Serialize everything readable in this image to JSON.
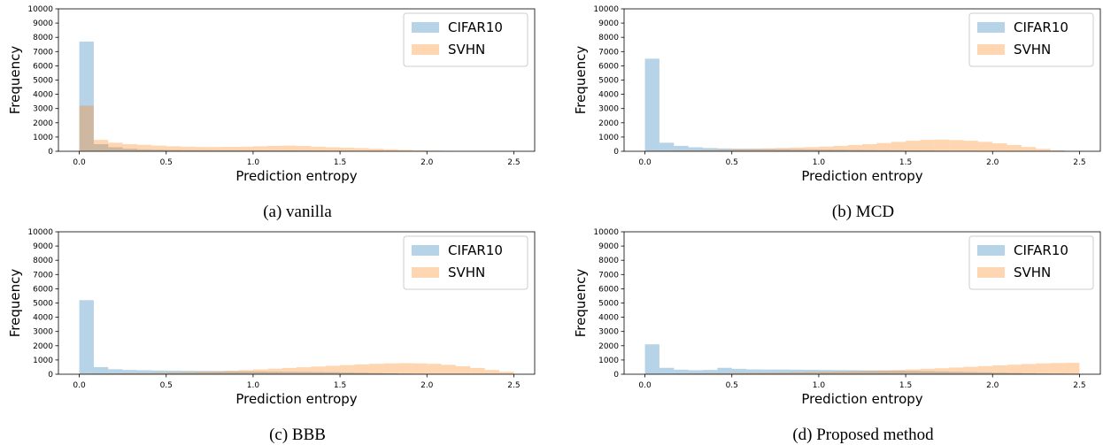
{
  "chart_data": [
    {
      "type": "bar",
      "caption": "(a) vanilla",
      "xlabel": "Prediction entropy",
      "ylabel": "Frequency",
      "xlim": [
        -0.12,
        2.62
      ],
      "ylim": [
        0,
        10000
      ],
      "xticks": [
        "0.0",
        "0.5",
        "1.0",
        "1.5",
        "2.0",
        "2.5"
      ],
      "yticks": [
        "0",
        "1000",
        "2000",
        "3000",
        "4000",
        "5000",
        "6000",
        "7000",
        "8000",
        "9000",
        "10000"
      ],
      "bin_width": 0.08333,
      "legend": "top-right",
      "series": [
        {
          "name": "CIFAR10",
          "color": "#1f77b4",
          "start": 0.0,
          "values": [
            7700,
            500,
            280,
            180,
            130,
            110,
            95,
            85,
            80,
            75,
            70,
            70,
            65,
            60,
            55,
            50,
            45,
            40,
            30,
            20,
            15,
            10,
            5
          ]
        },
        {
          "name": "SVHN",
          "color": "#ff7f0e",
          "start": 0.0,
          "values": [
            3200,
            800,
            600,
            500,
            450,
            400,
            350,
            320,
            300,
            300,
            310,
            320,
            350,
            380,
            400,
            370,
            320,
            280,
            250,
            220,
            180,
            140,
            100,
            60,
            40,
            20
          ]
        }
      ]
    },
    {
      "type": "bar",
      "caption": "(b) MCD",
      "xlabel": "Prediction entropy",
      "ylabel": "Frequency",
      "xlim": [
        -0.12,
        2.62
      ],
      "ylim": [
        0,
        10000
      ],
      "xticks": [
        "0.0",
        "0.5",
        "1.0",
        "1.5",
        "2.0",
        "2.5"
      ],
      "yticks": [
        "0",
        "1000",
        "2000",
        "3000",
        "4000",
        "5000",
        "6000",
        "7000",
        "8000",
        "9000",
        "10000"
      ],
      "bin_width": 0.08333,
      "legend": "top-right",
      "series": [
        {
          "name": "CIFAR10",
          "color": "#1f77b4",
          "start": 0.0,
          "values": [
            6500,
            600,
            380,
            280,
            230,
            200,
            180,
            170,
            160,
            150,
            140,
            130,
            120,
            110,
            100,
            90,
            80,
            70,
            60,
            50,
            40,
            30,
            20,
            10
          ]
        },
        {
          "name": "SVHN",
          "color": "#ff7f0e",
          "start": 0.0,
          "values": [
            40,
            50,
            60,
            70,
            90,
            110,
            140,
            170,
            200,
            230,
            260,
            290,
            330,
            380,
            440,
            500,
            580,
            660,
            740,
            800,
            820,
            790,
            740,
            660,
            560,
            440,
            300,
            170,
            60
          ]
        }
      ]
    },
    {
      "type": "bar",
      "caption": "(c) BBB",
      "xlabel": "Prediction entropy",
      "ylabel": "Frequency",
      "xlim": [
        -0.12,
        2.62
      ],
      "ylim": [
        0,
        10000
      ],
      "xticks": [
        "0.0",
        "0.5",
        "1.0",
        "1.5",
        "2.0",
        "2.5"
      ],
      "yticks": [
        "0",
        "1000",
        "2000",
        "3000",
        "4000",
        "5000",
        "6000",
        "7000",
        "8000",
        "9000",
        "10000"
      ],
      "bin_width": 0.08333,
      "legend": "top-right",
      "series": [
        {
          "name": "CIFAR10",
          "color": "#1f77b4",
          "start": 0.0,
          "values": [
            5200,
            500,
            350,
            300,
            280,
            260,
            250,
            240,
            230,
            220,
            210,
            200,
            190,
            180,
            170,
            160,
            150,
            140,
            120,
            100,
            80,
            60,
            40,
            20
          ]
        },
        {
          "name": "SVHN",
          "color": "#ff7f0e",
          "start": 0.0,
          "values": [
            40,
            50,
            60,
            70,
            80,
            100,
            120,
            140,
            170,
            200,
            240,
            290,
            340,
            390,
            440,
            490,
            540,
            590,
            640,
            690,
            730,
            760,
            780,
            760,
            730,
            660,
            560,
            440,
            300,
            170
          ]
        }
      ]
    },
    {
      "type": "bar",
      "caption": "(d) Proposed method",
      "xlabel": "Prediction entropy",
      "ylabel": "Frequency",
      "xlim": [
        -0.12,
        2.62
      ],
      "ylim": [
        0,
        10000
      ],
      "xticks": [
        "0.0",
        "0.5",
        "1.0",
        "1.5",
        "2.0",
        "2.5"
      ],
      "yticks": [
        "0",
        "1000",
        "2000",
        "3000",
        "4000",
        "5000",
        "6000",
        "7000",
        "8000",
        "9000",
        "10000"
      ],
      "bin_width": 0.08333,
      "legend": "top-right",
      "series": [
        {
          "name": "CIFAR10",
          "color": "#1f77b4",
          "start": 0.0,
          "values": [
            2100,
            450,
            320,
            280,
            300,
            450,
            380,
            340,
            330,
            330,
            320,
            310,
            300,
            290,
            280,
            270,
            260,
            250,
            230,
            210,
            190,
            170,
            150,
            130,
            110,
            90,
            70,
            50,
            40,
            30
          ]
        },
        {
          "name": "SVHN",
          "color": "#ff7f0e",
          "start": 0.0,
          "values": [
            30,
            40,
            50,
            60,
            70,
            80,
            90,
            100,
            110,
            120,
            140,
            160,
            180,
            200,
            220,
            240,
            270,
            300,
            340,
            380,
            420,
            470,
            520,
            570,
            620,
            670,
            720,
            760,
            790,
            800
          ]
        }
      ]
    }
  ]
}
